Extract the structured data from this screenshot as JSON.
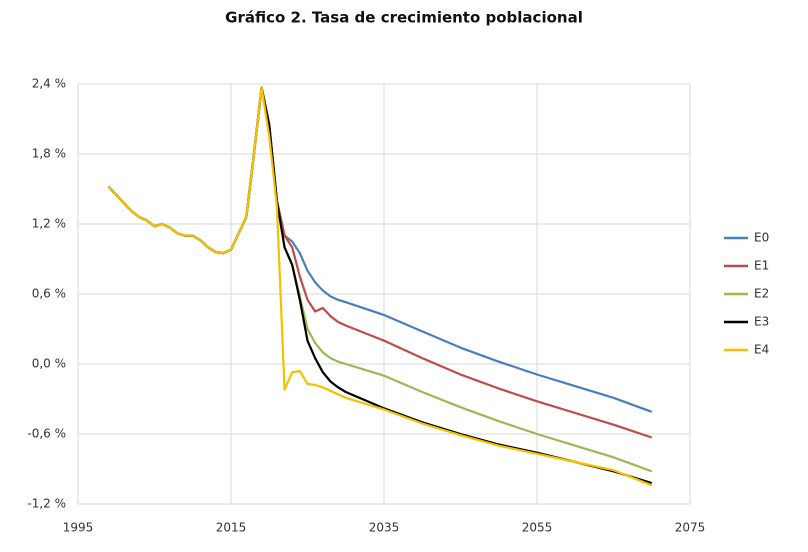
{
  "chart_data": {
    "type": "line",
    "title": "Gráfico 2. Tasa de crecimiento poblacional",
    "x": [
      1999,
      2000,
      2001,
      2002,
      2003,
      2004,
      2005,
      2006,
      2007,
      2008,
      2009,
      2010,
      2011,
      2012,
      2013,
      2014,
      2015,
      2016,
      2017,
      2018,
      2019,
      2020,
      2021,
      2022,
      2023,
      2024,
      2025,
      2026,
      2027,
      2028,
      2029,
      2030,
      2035,
      2040,
      2045,
      2050,
      2055,
      2060,
      2065,
      2070
    ],
    "series": [
      {
        "name": "E0",
        "color": "#4a7ebb",
        "values": [
          1.52,
          1.45,
          1.38,
          1.31,
          1.26,
          1.23,
          1.18,
          1.2,
          1.17,
          1.12,
          1.1,
          1.1,
          1.06,
          1.0,
          0.96,
          0.95,
          0.98,
          1.12,
          1.26,
          1.8,
          2.37,
          2.05,
          1.4,
          1.1,
          1.05,
          0.95,
          0.8,
          0.7,
          0.63,
          0.58,
          0.55,
          0.53,
          0.42,
          0.28,
          0.14,
          0.02,
          -0.09,
          -0.19,
          -0.29,
          -0.41
        ]
      },
      {
        "name": "E1",
        "color": "#be4b48",
        "values": [
          1.52,
          1.45,
          1.38,
          1.31,
          1.26,
          1.23,
          1.18,
          1.2,
          1.17,
          1.12,
          1.1,
          1.1,
          1.06,
          1.0,
          0.96,
          0.95,
          0.98,
          1.12,
          1.26,
          1.8,
          2.37,
          2.05,
          1.4,
          1.1,
          1.0,
          0.75,
          0.55,
          0.45,
          0.48,
          0.41,
          0.36,
          0.33,
          0.2,
          0.05,
          -0.09,
          -0.21,
          -0.32,
          -0.42,
          -0.52,
          -0.63
        ]
      },
      {
        "name": "E2",
        "color": "#98b954",
        "values": [
          1.52,
          1.45,
          1.38,
          1.31,
          1.26,
          1.23,
          1.18,
          1.2,
          1.17,
          1.12,
          1.1,
          1.1,
          1.06,
          1.0,
          0.96,
          0.95,
          0.98,
          1.12,
          1.26,
          1.8,
          2.37,
          2.05,
          1.4,
          1.0,
          0.85,
          0.58,
          0.3,
          0.18,
          0.1,
          0.05,
          0.02,
          0.0,
          -0.1,
          -0.24,
          -0.37,
          -0.49,
          -0.6,
          -0.7,
          -0.8,
          -0.92
        ]
      },
      {
        "name": "E3",
        "color": "#000000",
        "values": [
          1.52,
          1.45,
          1.38,
          1.31,
          1.26,
          1.23,
          1.18,
          1.2,
          1.17,
          1.12,
          1.1,
          1.1,
          1.06,
          1.0,
          0.96,
          0.95,
          0.98,
          1.12,
          1.26,
          1.8,
          2.37,
          2.05,
          1.4,
          1.0,
          0.85,
          0.55,
          0.2,
          0.05,
          -0.07,
          -0.15,
          -0.2,
          -0.24,
          -0.38,
          -0.5,
          -0.6,
          -0.69,
          -0.76,
          -0.84,
          -0.92,
          -1.02
        ]
      },
      {
        "name": "E4",
        "color": "#f5c000",
        "values": [
          1.52,
          1.45,
          1.38,
          1.31,
          1.26,
          1.23,
          1.18,
          1.2,
          1.17,
          1.12,
          1.1,
          1.1,
          1.06,
          1.0,
          0.96,
          0.95,
          0.98,
          1.12,
          1.26,
          1.8,
          2.37,
          1.95,
          1.35,
          -0.22,
          -0.07,
          -0.06,
          -0.17,
          -0.18,
          -0.2,
          -0.23,
          -0.26,
          -0.29,
          -0.39,
          -0.51,
          -0.61,
          -0.7,
          -0.77,
          -0.84,
          -0.91,
          -1.04
        ]
      }
    ],
    "xlim": [
      1995,
      2075
    ],
    "xticks": [
      1995,
      2015,
      2035,
      2055,
      2075
    ],
    "ylim": [
      -1.2,
      2.4
    ],
    "yticks": [
      {
        "value": -1.2,
        "label": "-1,2 %"
      },
      {
        "value": -0.6,
        "label": "-0,6 %"
      },
      {
        "value": 0.0,
        "label": "0,0 %"
      },
      {
        "value": 0.6,
        "label": "0,6 %"
      },
      {
        "value": 1.2,
        "label": "1,2 %"
      },
      {
        "value": 1.8,
        "label": "1,8 %"
      },
      {
        "value": 2.4,
        "label": "2,4 %"
      }
    ],
    "grid": true,
    "legend": "right"
  }
}
